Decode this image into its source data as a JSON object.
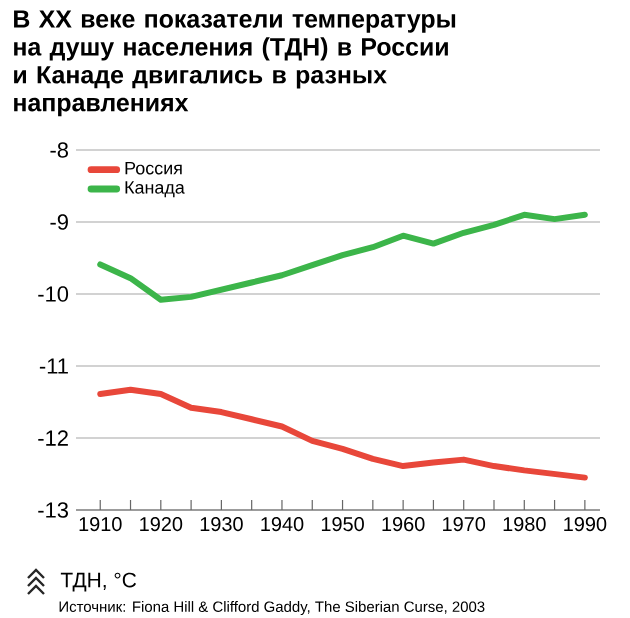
{
  "chart_data": {
    "type": "line",
    "title": "В XX веке показатели температуры на душу населения (ТДН) в России и Канаде двигались в разных направлениях",
    "annotations": [
      "ТДН, °С",
      "Источник: Fiona Hill & Clifford Gaddy, The Siberian Curse, 2003"
    ],
    "x": [
      1910,
      1915,
      1920,
      1925,
      1930,
      1935,
      1940,
      1945,
      1950,
      1955,
      1960,
      1965,
      1970,
      1975,
      1980,
      1985,
      1990
    ],
    "series": [
      {
        "name": "Россия",
        "color": "#e8473a",
        "values": [
          -11.39,
          -11.33,
          -11.39,
          -11.58,
          -11.64,
          -11.74,
          -11.84,
          -12.04,
          -12.15,
          -12.29,
          -12.39,
          -12.34,
          -12.3,
          -12.39,
          -12.45,
          -12.5,
          -12.55
        ]
      },
      {
        "name": "Канада",
        "color": "#3cb54a",
        "values": [
          -9.59,
          -9.78,
          -10.08,
          -10.04,
          -9.94,
          -9.84,
          -9.74,
          -9.6,
          -9.46,
          -9.35,
          -9.19,
          -9.3,
          -9.15,
          -9.04,
          -8.9,
          -8.96,
          -8.9
        ]
      }
    ],
    "xlim": [
      1906,
      1992.5
    ],
    "ylim": [
      -13,
      -8
    ],
    "xticks": [
      1910,
      {
        "value": 1915,
        "label": null
      },
      1920,
      {
        "value": 1925,
        "label": null
      },
      1930,
      {
        "value": 1935,
        "label": null
      },
      1940,
      {
        "value": 1945,
        "label": null
      },
      1950,
      {
        "value": 1955,
        "label": null
      },
      1960,
      {
        "value": 1965,
        "label": null
      },
      1970,
      {
        "value": 1975,
        "label": null
      },
      1980,
      {
        "value": 1985,
        "label": null
      },
      1990
    ],
    "yticks": [
      -13,
      -12,
      -11,
      -10,
      -9,
      -8
    ],
    "grid": "y",
    "legend": "top left",
    "marker": "none",
    "line_style": "solid"
  }
}
